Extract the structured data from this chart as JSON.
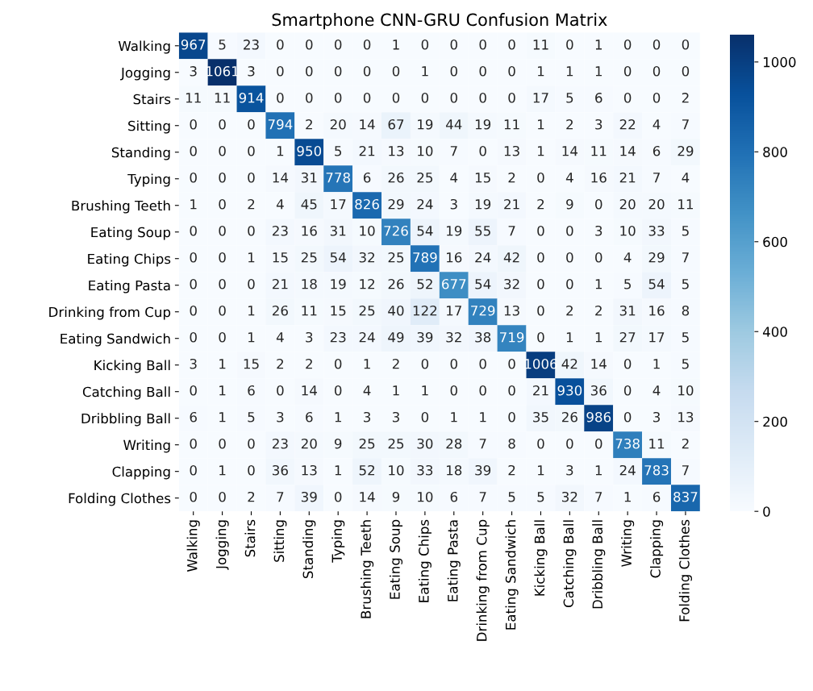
{
  "chart_data": {
    "type": "heatmap",
    "title": "Smartphone CNN-GRU Confusion Matrix",
    "categories": [
      "Walking",
      "Jogging",
      "Stairs",
      "Sitting",
      "Standing",
      "Typing",
      "Brushing Teeth",
      "Eating Soup",
      "Eating Chips",
      "Eating Pasta",
      "Drinking from Cup",
      "Eating Sandwich",
      "Kicking Ball",
      "Catching Ball",
      "Dribbling Ball",
      "Writing",
      "Clapping",
      "Folding Clothes"
    ],
    "y_categories": [
      "Walking",
      "Jogging",
      "Stairs",
      "Sitting",
      "Standing",
      "Typing",
      "Brushing Teeth",
      "Eating Soup",
      "Eating Chips",
      "Eating Pasta",
      "Drinking from Cup",
      "Eating Sandwich",
      "Kicking Ball",
      "Catching Ball",
      "Dribbling Ball",
      "Writing",
      "Clapping",
      "Folding Clothes"
    ],
    "cells": [
      [
        967,
        5,
        23,
        0,
        0,
        0,
        0,
        1,
        0,
        0,
        0,
        0,
        11,
        0,
        1,
        0,
        0,
        0
      ],
      [
        3,
        1061,
        3,
        0,
        0,
        0,
        0,
        0,
        1,
        0,
        0,
        0,
        1,
        1,
        1,
        0,
        0,
        0
      ],
      [
        11,
        11,
        914,
        0,
        0,
        0,
        0,
        0,
        0,
        0,
        0,
        0,
        17,
        5,
        6,
        0,
        0,
        2
      ],
      [
        0,
        0,
        0,
        794,
        2,
        20,
        14,
        67,
        19,
        44,
        19,
        11,
        1,
        2,
        3,
        22,
        4,
        7
      ],
      [
        0,
        0,
        0,
        1,
        950,
        5,
        21,
        13,
        10,
        7,
        0,
        13,
        1,
        14,
        11,
        14,
        6,
        29
      ],
      [
        0,
        0,
        0,
        14,
        31,
        778,
        6,
        26,
        25,
        4,
        15,
        2,
        0,
        4,
        16,
        21,
        7,
        4
      ],
      [
        1,
        0,
        2,
        4,
        45,
        17,
        826,
        29,
        24,
        3,
        19,
        21,
        2,
        9,
        0,
        20,
        20,
        11
      ],
      [
        0,
        0,
        0,
        23,
        16,
        31,
        10,
        726,
        54,
        19,
        55,
        7,
        0,
        0,
        3,
        10,
        33,
        5
      ],
      [
        0,
        0,
        1,
        15,
        25,
        54,
        32,
        25,
        789,
        16,
        24,
        42,
        0,
        0,
        0,
        4,
        29,
        7
      ],
      [
        0,
        0,
        0,
        21,
        18,
        19,
        12,
        26,
        52,
        677,
        54,
        32,
        0,
        0,
        1,
        5,
        54,
        5
      ],
      [
        0,
        0,
        1,
        26,
        11,
        15,
        25,
        40,
        122,
        17,
        729,
        13,
        0,
        2,
        2,
        31,
        16,
        8
      ],
      [
        0,
        0,
        1,
        4,
        3,
        23,
        24,
        49,
        39,
        32,
        38,
        719,
        0,
        1,
        1,
        27,
        17,
        5
      ],
      [
        3,
        1,
        15,
        2,
        2,
        0,
        1,
        2,
        0,
        0,
        0,
        0,
        1006,
        42,
        14,
        0,
        1,
        5
      ],
      [
        0,
        1,
        6,
        0,
        14,
        0,
        4,
        1,
        1,
        0,
        0,
        0,
        21,
        930,
        36,
        0,
        4,
        10
      ],
      [
        6,
        1,
        5,
        3,
        6,
        1,
        3,
        3,
        0,
        1,
        1,
        0,
        35,
        26,
        986,
        0,
        3,
        13
      ],
      [
        0,
        0,
        0,
        23,
        20,
        9,
        25,
        25,
        30,
        28,
        7,
        8,
        0,
        0,
        0,
        738,
        11,
        2
      ],
      [
        0,
        1,
        0,
        36,
        13,
        1,
        52,
        10,
        33,
        18,
        39,
        2,
        1,
        3,
        1,
        24,
        783,
        7
      ],
      [
        0,
        0,
        2,
        7,
        39,
        0,
        14,
        9,
        10,
        6,
        7,
        5,
        5,
        32,
        7,
        1,
        6,
        837
      ]
    ],
    "clim": [
      0,
      1061
    ],
    "cticks": [
      0,
      200,
      400,
      600,
      800,
      1000
    ],
    "data_labels": true
  }
}
